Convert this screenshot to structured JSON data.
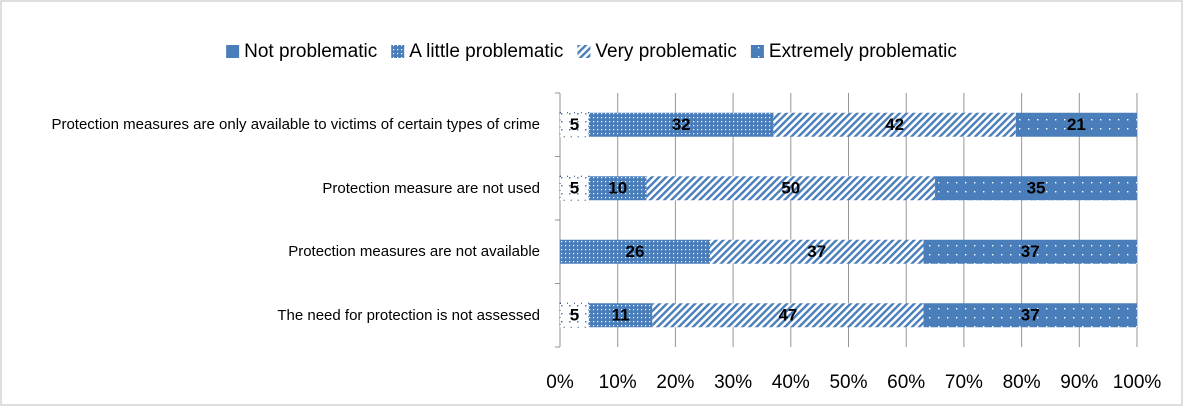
{
  "chart_data": {
    "type": "stacked_bar_horizontal",
    "categories": [
      "Protection measures are only available to victims of certain types of crime",
      "Protection measure are not used",
      "Protection measures are not available",
      "The need for protection is not assessed"
    ],
    "series": [
      {
        "name": "Not problematic",
        "color": "#4a7ebb",
        "pattern": "sparse-dots-white",
        "values": [
          5,
          5,
          null,
          5
        ]
      },
      {
        "name": "A little problematic",
        "color": "#4a7ebb",
        "pattern": "dense-dots",
        "values": [
          32,
          10,
          26,
          11
        ]
      },
      {
        "name": "Very problematic",
        "color": "#4a7ebb",
        "pattern": "diagonal-stripes",
        "values": [
          42,
          50,
          37,
          47
        ]
      },
      {
        "name": "Extremely problematic",
        "color": "#4a7ebb",
        "pattern": "sparse-dots",
        "values": [
          21,
          35,
          37,
          37
        ]
      }
    ],
    "xlim": [
      0,
      100
    ],
    "xticks": [
      {
        "value": 0,
        "label": "0%"
      },
      {
        "value": 10,
        "label": "10%"
      },
      {
        "value": 20,
        "label": "20%"
      },
      {
        "value": 30,
        "label": "30%"
      },
      {
        "value": 40,
        "label": "40%"
      },
      {
        "value": 50,
        "label": "50%"
      },
      {
        "value": 60,
        "label": "60%"
      },
      {
        "value": 70,
        "label": "70%"
      },
      {
        "value": 80,
        "label": "80%"
      },
      {
        "value": 90,
        "label": "90%"
      },
      {
        "value": 100,
        "label": "100%"
      }
    ],
    "grid": true,
    "legend": "top"
  }
}
